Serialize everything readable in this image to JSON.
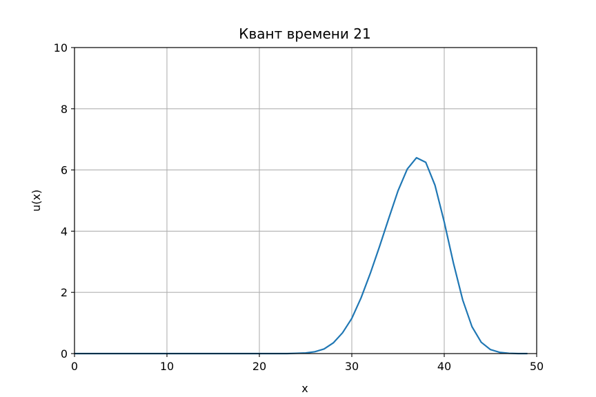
{
  "chart_data": {
    "type": "line",
    "title": "Квант времени 21",
    "xlabel": "x",
    "ylabel": "u(x)",
    "xlim": [
      0,
      50
    ],
    "ylim": [
      0,
      10
    ],
    "xticks": [
      "0",
      "10",
      "20",
      "30",
      "40",
      "50"
    ],
    "yticks": [
      "0",
      "2",
      "4",
      "6",
      "8",
      "10"
    ],
    "grid": true,
    "line_color": "#1f77b4",
    "series": [
      {
        "x": [
          0,
          1,
          2,
          3,
          4,
          5,
          6,
          7,
          8,
          9,
          10,
          11,
          12,
          13,
          14,
          15,
          16,
          17,
          18,
          19,
          20,
          21,
          22,
          23,
          24,
          25,
          26,
          27,
          28,
          29,
          30,
          31,
          32,
          33,
          34,
          35,
          36,
          37,
          38,
          39,
          40,
          41,
          42,
          43,
          44,
          45,
          46,
          47,
          48,
          49
        ],
        "values": [
          0,
          0,
          0,
          0,
          0,
          0,
          0,
          0,
          0,
          0,
          0,
          0,
          0,
          0,
          0,
          0,
          0,
          0,
          0,
          0,
          0,
          0,
          0,
          0,
          0.01,
          0.02,
          0.06,
          0.15,
          0.35,
          0.68,
          1.15,
          1.82,
          2.62,
          3.5,
          4.42,
          5.32,
          6.03,
          6.4,
          6.25,
          5.5,
          4.3,
          2.95,
          1.75,
          0.88,
          0.37,
          0.13,
          0.04,
          0.01,
          0,
          0
        ]
      }
    ]
  }
}
